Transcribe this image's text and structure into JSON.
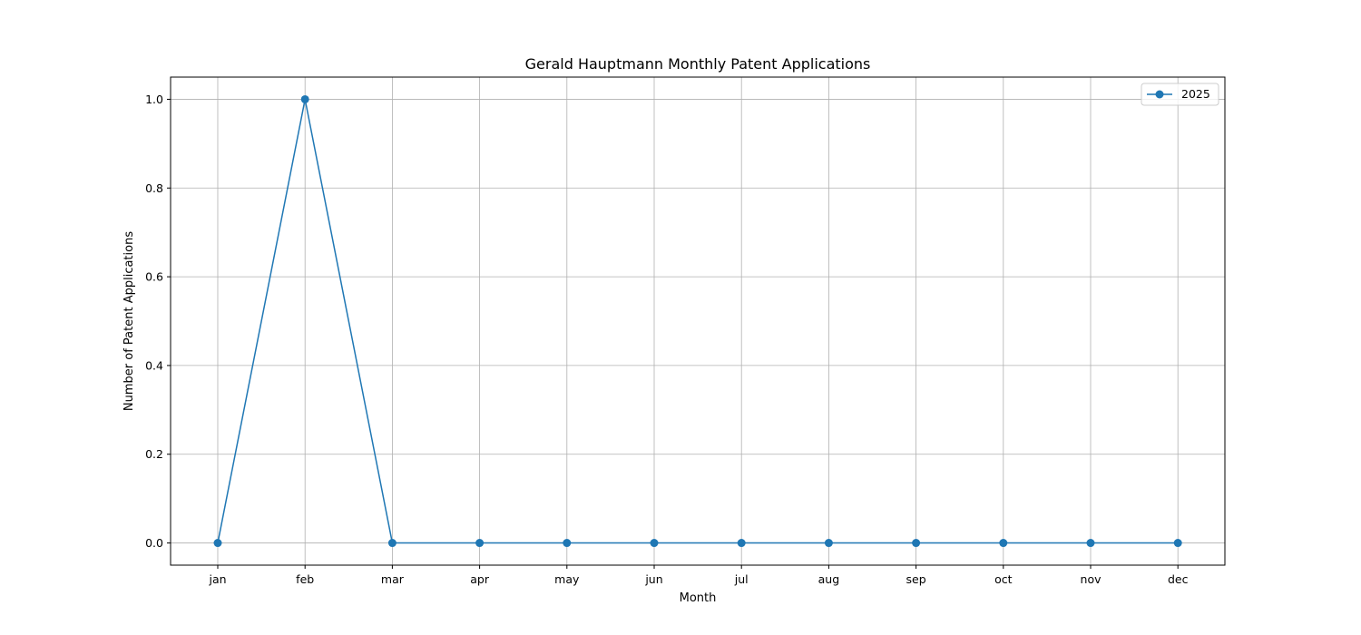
{
  "chart_data": {
    "type": "line",
    "title": "Gerald Hauptmann Monthly Patent Applications",
    "xlabel": "Month",
    "ylabel": "Number of Patent Applications",
    "categories": [
      "jan",
      "feb",
      "mar",
      "apr",
      "may",
      "jun",
      "jul",
      "aug",
      "sep",
      "oct",
      "nov",
      "dec"
    ],
    "series": [
      {
        "name": "2025",
        "color": "#1f77b4",
        "values": [
          0,
          1,
          0,
          0,
          0,
          0,
          0,
          0,
          0,
          0,
          0,
          0
        ]
      }
    ],
    "ylim": [
      -0.05,
      1.05
    ],
    "yticks": [
      "0.0",
      "0.2",
      "0.4",
      "0.6",
      "0.8",
      "1.0"
    ],
    "grid": true,
    "legend_position": "top-right",
    "marker": "circle"
  }
}
